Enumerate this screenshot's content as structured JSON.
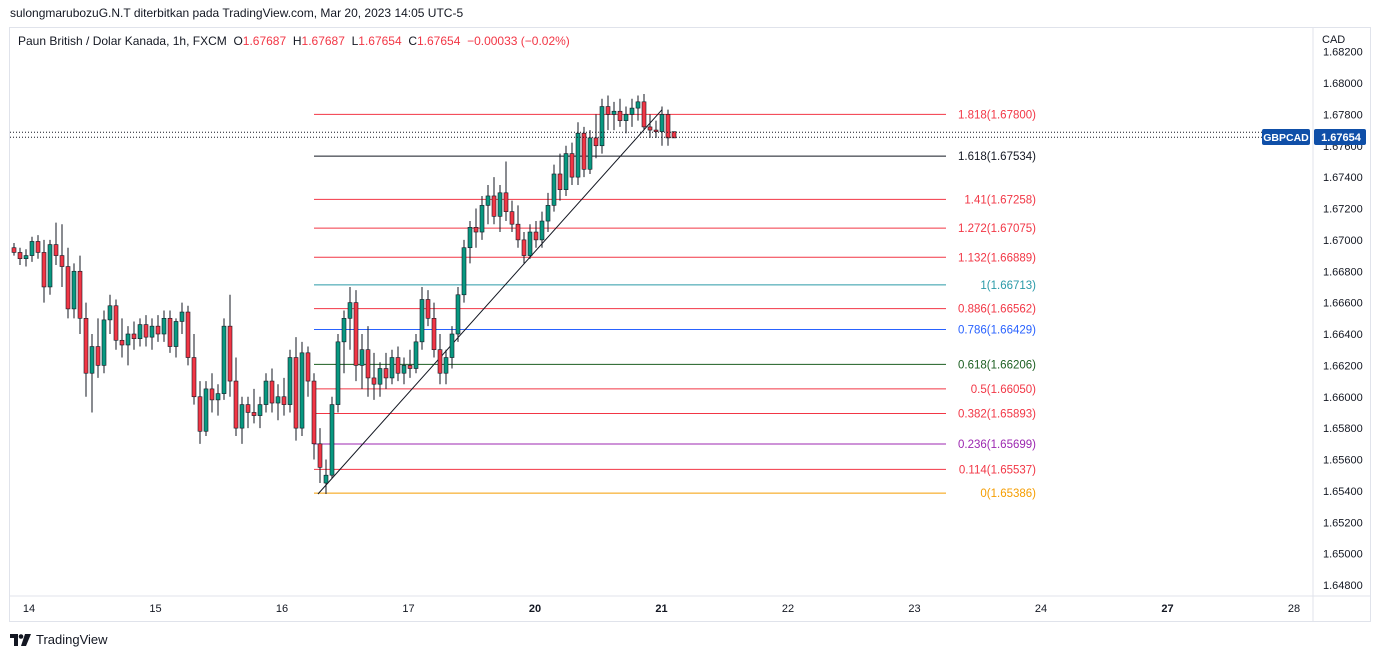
{
  "attribution": "sulongmarubozuG.N.T diterbitkan pada TradingView.com, Mar 20, 2023 14:05 UTC-5",
  "legend": {
    "symbol_desc": "Paun British / Dolar Kanada, 1h, FXCM",
    "open_label": "O",
    "open": "1.67687",
    "high_label": "H",
    "high": "1.67687",
    "low_label": "L",
    "low": "1.67654",
    "close_label": "C",
    "close": "1.67654",
    "change": "−0.00033 (−0.02%)"
  },
  "currency": "CAD",
  "price_tag": {
    "symbol": "GBPCAD",
    "price": "1.67654"
  },
  "footer": {
    "brand": "TradingView"
  },
  "colors": {
    "up": "#089981",
    "down": "#f23645",
    "tag": "#0f4fa8"
  },
  "chart_data": {
    "type": "candlestick",
    "symbol": "GBPCAD",
    "timeframe": "1h",
    "ylim": [
      1.647,
      1.6835
    ],
    "y_ticks": [
      "1.64800",
      "1.65000",
      "1.65200",
      "1.65400",
      "1.65600",
      "1.65800",
      "1.66000",
      "1.66200",
      "1.66400",
      "1.66600",
      "1.66800",
      "1.67000",
      "1.67200",
      "1.67400",
      "1.67600",
      "1.67800",
      "1.68000",
      "1.68200"
    ],
    "x_ticks": [
      "14",
      "15",
      "16",
      "17",
      "20",
      "21",
      "22",
      "23",
      "24",
      "27",
      "28"
    ],
    "x_ticks_bold": [
      "20",
      "21",
      "27"
    ],
    "last_price": 1.67654,
    "fibonacci": [
      {
        "level": "1.818",
        "value": 1.678,
        "label": "1.818(1.67800)",
        "color": "#f23645"
      },
      {
        "level": "1.618",
        "value": 1.67534,
        "label": "1.618(1.67534)",
        "color": "#131722"
      },
      {
        "level": "1.41",
        "value": 1.67258,
        "label": "1.41(1.67258)",
        "color": "#f23645"
      },
      {
        "level": "1.272",
        "value": 1.67075,
        "label": "1.272(1.67075)",
        "color": "#f23645"
      },
      {
        "level": "1.132",
        "value": 1.66889,
        "label": "1.132(1.66889)",
        "color": "#f23645"
      },
      {
        "level": "1",
        "value": 1.66713,
        "label": "1(1.66713)",
        "color": "#2a9aa8"
      },
      {
        "level": "0.886",
        "value": 1.66562,
        "label": "0.886(1.66562)",
        "color": "#f23645"
      },
      {
        "level": "0.786",
        "value": 1.66429,
        "label": "0.786(1.66429)",
        "color": "#2962ff"
      },
      {
        "level": "0.618",
        "value": 1.66206,
        "label": "0.618(1.66206)",
        "color": "#1b5e20"
      },
      {
        "level": "0.5",
        "value": 1.6605,
        "label": "0.5(1.66050)",
        "color": "#f23645"
      },
      {
        "level": "0.382",
        "value": 1.65893,
        "label": "0.382(1.65893)",
        "color": "#f23645"
      },
      {
        "level": "0.236",
        "value": 1.65699,
        "label": "0.236(1.65699)",
        "color": "#9c27b0"
      },
      {
        "level": "0.114",
        "value": 1.65537,
        "label": "0.114(1.65537)",
        "color": "#f23645"
      },
      {
        "level": "0",
        "value": 1.65386,
        "label": "0(1.65386)",
        "color": "#f59d00"
      }
    ],
    "trendline": [
      {
        "bar": 0,
        "price": 1.6538
      },
      {
        "bar": 1,
        "price": 1.6783
      }
    ],
    "candles": [
      [
        1.6695,
        1.6698,
        1.669,
        1.6692
      ],
      [
        1.6692,
        1.6695,
        1.6684,
        1.6688
      ],
      [
        1.6688,
        1.6694,
        1.6683,
        1.669
      ],
      [
        1.669,
        1.6702,
        1.6686,
        1.6699
      ],
      [
        1.6699,
        1.6703,
        1.6688,
        1.6692
      ],
      [
        1.6692,
        1.67,
        1.666,
        1.667
      ],
      [
        1.667,
        1.67,
        1.6665,
        1.6697
      ],
      [
        1.6697,
        1.6711,
        1.6684,
        1.669
      ],
      [
        1.669,
        1.671,
        1.667,
        1.6683
      ],
      [
        1.6683,
        1.6695,
        1.665,
        1.6656
      ],
      [
        1.6656,
        1.6685,
        1.665,
        1.668
      ],
      [
        1.668,
        1.669,
        1.664,
        1.665
      ],
      [
        1.665,
        1.666,
        1.66,
        1.6615
      ],
      [
        1.6615,
        1.664,
        1.659,
        1.6632
      ],
      [
        1.6632,
        1.665,
        1.6612,
        1.662
      ],
      [
        1.662,
        1.6655,
        1.6615,
        1.6649
      ],
      [
        1.6649,
        1.6665,
        1.664,
        1.6658
      ],
      [
        1.6658,
        1.6662,
        1.663,
        1.6636
      ],
      [
        1.6636,
        1.665,
        1.6625,
        1.6633
      ],
      [
        1.6633,
        1.6645,
        1.662,
        1.664
      ],
      [
        1.664,
        1.6648,
        1.663,
        1.6637
      ],
      [
        1.6637,
        1.665,
        1.6632,
        1.6646
      ],
      [
        1.6646,
        1.6652,
        1.6632,
        1.6638
      ],
      [
        1.6638,
        1.665,
        1.663,
        1.6645
      ],
      [
        1.6645,
        1.6652,
        1.6635,
        1.664
      ],
      [
        1.664,
        1.6655,
        1.6635,
        1.665
      ],
      [
        1.665,
        1.6655,
        1.6628,
        1.6632
      ],
      [
        1.6632,
        1.665,
        1.6625,
        1.6648
      ],
      [
        1.6648,
        1.666,
        1.664,
        1.6654
      ],
      [
        1.6654,
        1.6658,
        1.662,
        1.6625
      ],
      [
        1.6625,
        1.664,
        1.6595,
        1.66
      ],
      [
        1.66,
        1.661,
        1.657,
        1.6578
      ],
      [
        1.6578,
        1.661,
        1.6575,
        1.6605
      ],
      [
        1.6605,
        1.6615,
        1.659,
        1.6598
      ],
      [
        1.6598,
        1.6608,
        1.6588,
        1.6602
      ],
      [
        1.6602,
        1.665,
        1.6598,
        1.6645
      ],
      [
        1.6645,
        1.6665,
        1.66,
        1.661
      ],
      [
        1.661,
        1.6625,
        1.6575,
        1.658
      ],
      [
        1.658,
        1.66,
        1.657,
        1.6595
      ],
      [
        1.6595,
        1.66,
        1.658,
        1.659
      ],
      [
        1.659,
        1.6605,
        1.6583,
        1.6588
      ],
      [
        1.6588,
        1.66,
        1.658,
        1.6595
      ],
      [
        1.6595,
        1.6615,
        1.659,
        1.661
      ],
      [
        1.661,
        1.6618,
        1.659,
        1.6596
      ],
      [
        1.6596,
        1.6608,
        1.6585,
        1.66
      ],
      [
        1.66,
        1.6612,
        1.6588,
        1.6595
      ],
      [
        1.6595,
        1.663,
        1.659,
        1.6625
      ],
      [
        1.6625,
        1.6638,
        1.6572,
        1.658
      ],
      [
        1.658,
        1.6635,
        1.6575,
        1.6628
      ],
      [
        1.6628,
        1.6632,
        1.66,
        1.661
      ],
      [
        1.661,
        1.6615,
        1.656,
        1.657
      ],
      [
        1.657,
        1.658,
        1.6545,
        1.6555
      ],
      [
        1.6545,
        1.656,
        1.6538,
        1.655
      ],
      [
        1.655,
        1.66,
        1.6548,
        1.6595
      ],
      [
        1.6595,
        1.664,
        1.659,
        1.6635
      ],
      [
        1.6635,
        1.6655,
        1.6615,
        1.665
      ],
      [
        1.665,
        1.667,
        1.663,
        1.666
      ],
      [
        1.666,
        1.6668,
        1.661,
        1.662
      ],
      [
        1.662,
        1.664,
        1.6605,
        1.663
      ],
      [
        1.663,
        1.6645,
        1.66,
        1.6612
      ],
      [
        1.6612,
        1.6628,
        1.6598,
        1.6608
      ],
      [
        1.6608,
        1.6622,
        1.66,
        1.6618
      ],
      [
        1.6618,
        1.6628,
        1.6605,
        1.6612
      ],
      [
        1.6612,
        1.663,
        1.6608,
        1.6625
      ],
      [
        1.6625,
        1.6632,
        1.661,
        1.6615
      ],
      [
        1.6615,
        1.6625,
        1.6608,
        1.662
      ],
      [
        1.662,
        1.663,
        1.6612,
        1.6618
      ],
      [
        1.6618,
        1.664,
        1.6615,
        1.6635
      ],
      [
        1.6635,
        1.667,
        1.663,
        1.6662
      ],
      [
        1.6662,
        1.6668,
        1.6645,
        1.665
      ],
      [
        1.665,
        1.666,
        1.6625,
        1.663
      ],
      [
        1.663,
        1.664,
        1.6608,
        1.6615
      ],
      [
        1.6615,
        1.663,
        1.6608,
        1.6625
      ],
      [
        1.6625,
        1.6645,
        1.6618,
        1.664
      ],
      [
        1.664,
        1.667,
        1.6635,
        1.6665
      ],
      [
        1.6665,
        1.67,
        1.666,
        1.6695
      ],
      [
        1.6695,
        1.6712,
        1.6685,
        1.6708
      ],
      [
        1.6708,
        1.672,
        1.6695,
        1.6705
      ],
      [
        1.6705,
        1.6728,
        1.67,
        1.6722
      ],
      [
        1.6722,
        1.6735,
        1.671,
        1.6728
      ],
      [
        1.6728,
        1.674,
        1.671,
        1.6715
      ],
      [
        1.6715,
        1.6735,
        1.6705,
        1.673
      ],
      [
        1.673,
        1.675,
        1.6712,
        1.6718
      ],
      [
        1.6718,
        1.6725,
        1.6705,
        1.671
      ],
      [
        1.671,
        1.6722,
        1.6695,
        1.67
      ],
      [
        1.67,
        1.6705,
        1.6685,
        1.669
      ],
      [
        1.669,
        1.671,
        1.6688,
        1.6705
      ],
      [
        1.6705,
        1.6712,
        1.6695,
        1.67
      ],
      [
        1.67,
        1.6718,
        1.6695,
        1.6712
      ],
      [
        1.6712,
        1.673,
        1.6705,
        1.6722
      ],
      [
        1.6722,
        1.6748,
        1.6718,
        1.6742
      ],
      [
        1.6742,
        1.6755,
        1.6725,
        1.6732
      ],
      [
        1.6732,
        1.676,
        1.6728,
        1.6755
      ],
      [
        1.6755,
        1.6762,
        1.6735,
        1.674
      ],
      [
        1.674,
        1.6775,
        1.6735,
        1.6768
      ],
      [
        1.6768,
        1.6772,
        1.674,
        1.6745
      ],
      [
        1.6745,
        1.677,
        1.6742,
        1.6765
      ],
      [
        1.6765,
        1.678,
        1.6752,
        1.676
      ],
      [
        1.676,
        1.679,
        1.6755,
        1.6785
      ],
      [
        1.6785,
        1.6792,
        1.677,
        1.678
      ],
      [
        1.678,
        1.6788,
        1.677,
        1.6782
      ],
      [
        1.6782,
        1.679,
        1.6772,
        1.6776
      ],
      [
        1.6776,
        1.6785,
        1.6768,
        1.678
      ],
      [
        1.678,
        1.679,
        1.6772,
        1.6784
      ],
      [
        1.6784,
        1.6792,
        1.6776,
        1.6788
      ],
      [
        1.6788,
        1.6793,
        1.677,
        1.6772
      ],
      [
        1.6772,
        1.678,
        1.6765,
        1.677
      ],
      [
        1.677,
        1.6776,
        1.6765,
        1.6769
      ],
      [
        1.6769,
        1.6785,
        1.676,
        1.678
      ],
      [
        1.678,
        1.6783,
        1.676,
        1.6765
      ],
      [
        1.6769,
        1.6769,
        1.6765,
        1.6765
      ]
    ]
  }
}
